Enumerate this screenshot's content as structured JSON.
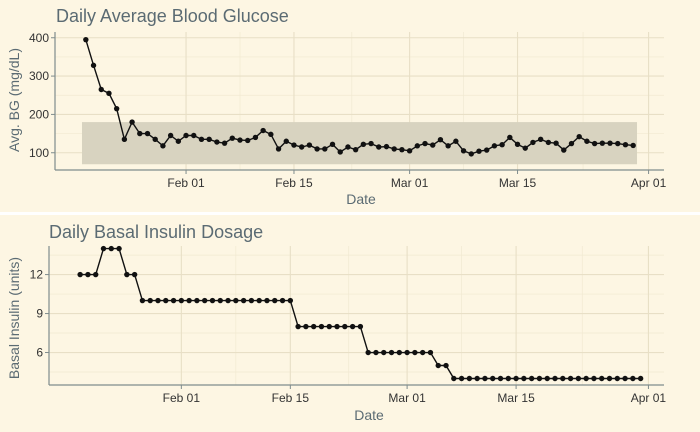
{
  "chart_data": [
    {
      "type": "line",
      "title": "Daily Average Blood Glucose",
      "xlabel": "Date",
      "ylabel": "Avg. BG (mg/dL)",
      "x_start": "2024-01-19",
      "x_ticks": [
        {
          "date": "2024-02-01",
          "label": "Feb 01"
        },
        {
          "date": "2024-02-15",
          "label": "Feb 15"
        },
        {
          "date": "2024-03-01",
          "label": "Mar 01"
        },
        {
          "date": "2024-03-15",
          "label": "Mar 15"
        },
        {
          "date": "2024-04-01",
          "label": "Apr 01"
        }
      ],
      "xlim": [
        "2024-01-15",
        "2024-04-03"
      ],
      "ylim": [
        55,
        415
      ],
      "y_ticks": [
        100,
        200,
        300,
        400
      ],
      "target_range": [
        70,
        180
      ],
      "grid": true,
      "series": [
        {
          "values": [
            395,
            328,
            265,
            255,
            215,
            135,
            180,
            150,
            150,
            135,
            118,
            145,
            130,
            145,
            145,
            135,
            135,
            128,
            125,
            138,
            133,
            132,
            140,
            158,
            148,
            110,
            130,
            120,
            115,
            120,
            110,
            110,
            122,
            102,
            115,
            108,
            122,
            124,
            115,
            116,
            110,
            108,
            105,
            118,
            124,
            120,
            134,
            118,
            130,
            105,
            97,
            104,
            107,
            118,
            121,
            140,
            122,
            112,
            127,
            135,
            127,
            125,
            107,
            124,
            142,
            130,
            124,
            125,
            125,
            124,
            121,
            119
          ]
        }
      ]
    },
    {
      "type": "line",
      "title": "Daily Basal Insulin Dosage",
      "xlabel": "Date",
      "ylabel": "Basal Insulin (units)",
      "x_start": "2024-01-19",
      "x_ticks": [
        {
          "date": "2024-02-01",
          "label": "Feb 01"
        },
        {
          "date": "2024-02-15",
          "label": "Feb 15"
        },
        {
          "date": "2024-03-01",
          "label": "Mar 01"
        },
        {
          "date": "2024-03-15",
          "label": "Mar 15"
        },
        {
          "date": "2024-04-01",
          "label": "Apr 01"
        }
      ],
      "xlim": [
        "2024-01-15",
        "2024-04-03"
      ],
      "ylim": [
        3.5,
        14.2
      ],
      "y_ticks": [
        6,
        9,
        12
      ],
      "grid": true,
      "series": [
        {
          "values": [
            12,
            12,
            12,
            14,
            14,
            14,
            12,
            12,
            10,
            10,
            10,
            10,
            10,
            10,
            10,
            10,
            10,
            10,
            10,
            10,
            10,
            10,
            10,
            10,
            10,
            10,
            10,
            10,
            8,
            8,
            8,
            8,
            8,
            8,
            8,
            8,
            8,
            6,
            6,
            6,
            6,
            6,
            6,
            6,
            6,
            6,
            5,
            5,
            4,
            4,
            4,
            4,
            4,
            4,
            4,
            4,
            4,
            4,
            4,
            4,
            4,
            4,
            4,
            4,
            4,
            4,
            4,
            4,
            4,
            4,
            4,
            4,
            4
          ]
        }
      ]
    }
  ]
}
